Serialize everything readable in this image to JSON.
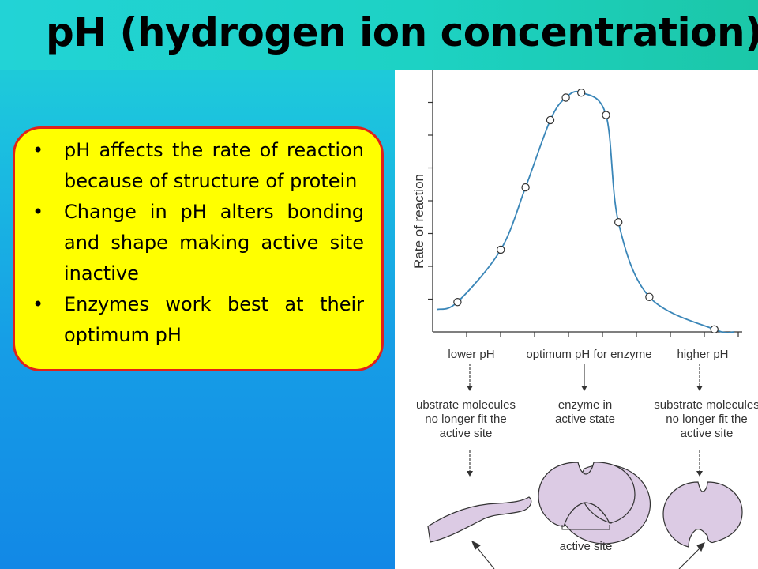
{
  "slide": {
    "title": "pH (hydrogen ion concentration)",
    "bullets": [
      "pH affects the rate of reaction because of structure of protein",
      "Change in pH alters bonding and shape making active site inactive",
      "Enzymes work best at their optimum pH"
    ],
    "colors": {
      "box_fill": "#ffff00",
      "box_border": "#e0201a",
      "curve": "#3a86b8",
      "enzyme_fill": "#dccbe4"
    }
  },
  "chart_data": {
    "type": "line",
    "title": "",
    "xlabel": "",
    "ylabel": "Rate of reaction",
    "x_regions": [
      "lower pH",
      "optimum pH for enzyme",
      "higher pH"
    ],
    "series": [
      {
        "points": [
          [
            0.08,
            0.12
          ],
          [
            0.22,
            0.33
          ],
          [
            0.3,
            0.58
          ],
          [
            0.38,
            0.85
          ],
          [
            0.43,
            0.94
          ],
          [
            0.48,
            0.96
          ],
          [
            0.56,
            0.87
          ],
          [
            0.6,
            0.44
          ],
          [
            0.7,
            0.14
          ],
          [
            0.91,
            0.01
          ]
        ]
      }
    ],
    "grid": false,
    "legend": "none"
  },
  "diagram": {
    "states": [
      {
        "condition": "lower pH",
        "description": "ubstrate molecules no longer fit the active site"
      },
      {
        "condition": "optimum pH for enzyme",
        "description": "enzyme in active state"
      },
      {
        "condition": "higher pH",
        "description": "substrate molecules no longer fit the active site"
      }
    ],
    "active_site_label": "active site"
  }
}
